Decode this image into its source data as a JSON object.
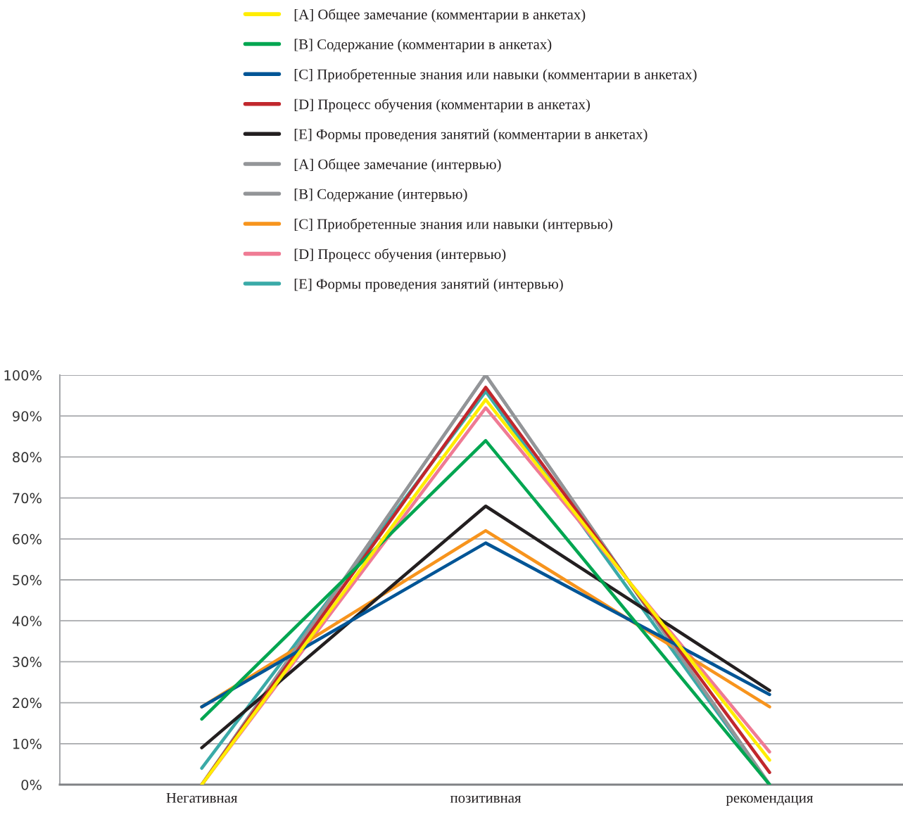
{
  "chart_data": {
    "type": "line",
    "categories": [
      "Негативная",
      "позитивная",
      "рекомендация"
    ],
    "series": [
      {
        "name": "[A] Общее замечание (комментарии в анкетах)",
        "color": "#ffed00",
        "values": [
          0,
          94,
          6
        ]
      },
      {
        "name": "[B] Содержание (комментарии в анкетах)",
        "color": "#00a651",
        "values": [
          16,
          84,
          0
        ]
      },
      {
        "name": "[C] Приобретенные знания или навыки (комментарии в анкетах)",
        "color": "#005596",
        "values": [
          19,
          59,
          22
        ]
      },
      {
        "name": "[D] Процесс обучения (комментарии в анкетах)",
        "color": "#c1272d",
        "values": [
          0,
          97,
          3
        ]
      },
      {
        "name": "[E] Формы проведения занятий (комментарии в анкетах)",
        "color": "#231f20",
        "values": [
          9,
          68,
          23
        ]
      },
      {
        "name": "[A] Общее замечание (интервью)",
        "color": "#939598",
        "values": [
          0,
          100,
          0
        ]
      },
      {
        "name": "[B] Содержание (интервью)",
        "color": "#939598",
        "values": [
          0,
          100,
          0
        ]
      },
      {
        "name": "[C] Приобретенные знания или навыки (интервью)",
        "color": "#f7941d",
        "values": [
          19,
          62,
          19
        ]
      },
      {
        "name": "[D] Процесс обучения (интервью)",
        "color": "#ef7b94",
        "values": [
          0,
          92,
          8
        ]
      },
      {
        "name": "[E] Формы проведения занятий (интервью)",
        "color": "#3aaaa8",
        "values": [
          4,
          96,
          0
        ]
      }
    ],
    "ylim": [
      0,
      100
    ],
    "yticks": [
      {
        "value": 0,
        "label": "0%"
      },
      {
        "value": 10,
        "label": "10%"
      },
      {
        "value": 20,
        "label": "20%"
      },
      {
        "value": 30,
        "label": "30%"
      },
      {
        "value": 40,
        "label": "40%"
      },
      {
        "value": 50,
        "label": "50%"
      },
      {
        "value": 60,
        "label": "60%"
      },
      {
        "value": 70,
        "label": "70%"
      },
      {
        "value": 80,
        "label": "80%"
      },
      {
        "value": 90,
        "label": "90%"
      },
      {
        "value": 100,
        "label": "100%"
      }
    ],
    "grid": "y",
    "legend": "top",
    "marker": "none",
    "line_style": "solid"
  }
}
